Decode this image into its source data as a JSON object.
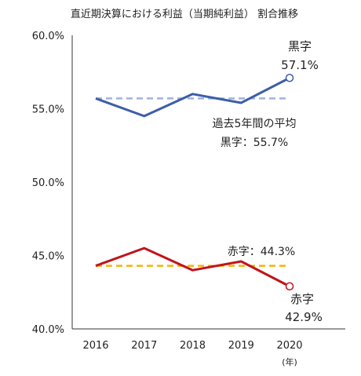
{
  "chart_data": {
    "type": "line",
    "title": "直近期決算における利益（当期純利益） 割合推移",
    "categories": [
      "2016",
      "2017",
      "2018",
      "2019",
      "2020"
    ],
    "x_unit": "(年)",
    "ylim": [
      40,
      60
    ],
    "yticks": [
      "40.0%",
      "45.0%",
      "50.0%",
      "55.0%",
      "60.0%"
    ],
    "ytick_values": [
      40,
      45,
      50,
      55,
      60
    ],
    "grid": false,
    "series": [
      {
        "name": "黒字",
        "values": [
          55.7,
          54.5,
          56.0,
          55.4,
          57.1
        ],
        "color": "#3c5ea8"
      },
      {
        "name": "赤字",
        "values": [
          44.3,
          45.5,
          44.0,
          44.6,
          42.9
        ],
        "color": "#c0141c"
      }
    ],
    "averages": [
      {
        "value": 55.7,
        "color": "#9fb3dc"
      },
      {
        "value": 44.3,
        "color": "#f5b400"
      }
    ],
    "annotations": {
      "black_end_name": "黒字",
      "black_end_value": "57.1%",
      "avg_title": "過去5年間の平均",
      "avg_black": "黒字：55.7%",
      "avg_red": "赤字：44.3%",
      "red_end_name": "赤字",
      "red_end_value": "42.9%"
    }
  }
}
